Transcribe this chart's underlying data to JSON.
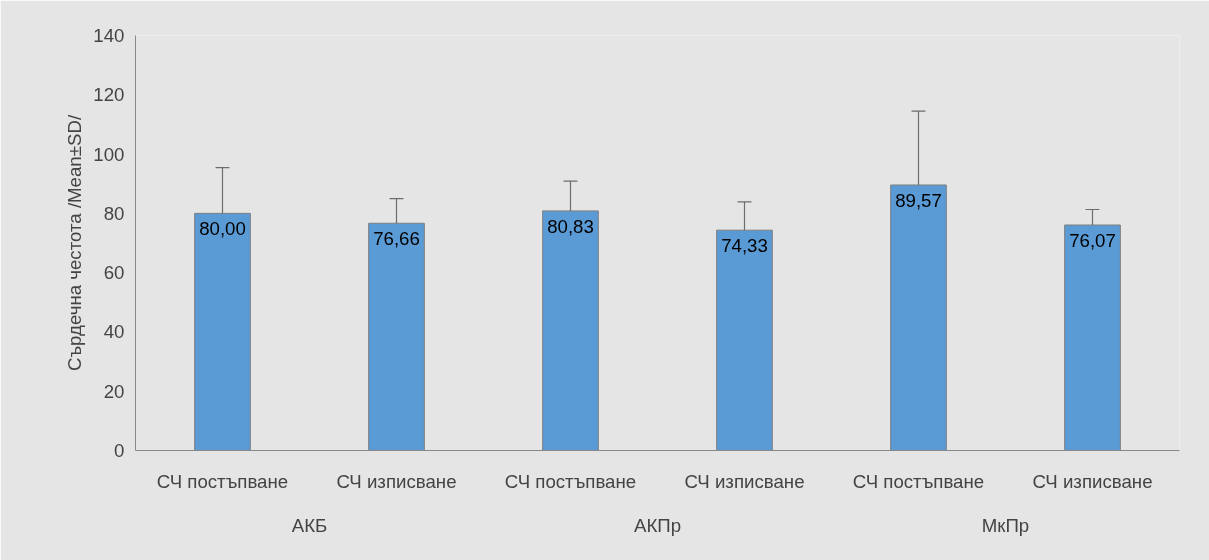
{
  "chart_data": {
    "type": "bar",
    "ylabel": "Сърдечна честота /Mean±SD/",
    "categories": [
      "СЧ постъпване",
      "СЧ изписване",
      "СЧ постъпване",
      "СЧ изписване",
      "СЧ постъпване",
      "СЧ изписване"
    ],
    "values": [
      80.0,
      76.66,
      80.83,
      74.33,
      89.57,
      76.07
    ],
    "value_labels": [
      "80,00",
      "76,66",
      "80,83",
      "74,33",
      "89,57",
      "76,07"
    ],
    "color": "#5b9bd5",
    "errors": [
      [
        80.0,
        95.4
      ],
      [
        76.66,
        85.0
      ],
      [
        80.83,
        90.9
      ],
      [
        74.33,
        83.9
      ],
      [
        89.57,
        114.5
      ],
      [
        76.07,
        81.3
      ]
    ],
    "annotations": [
      "АКБ",
      "АКПр",
      "МкПр"
    ],
    "ylim": [
      0,
      140
    ],
    "yticks": [
      0,
      20,
      40,
      60,
      80,
      100,
      120,
      140
    ]
  }
}
